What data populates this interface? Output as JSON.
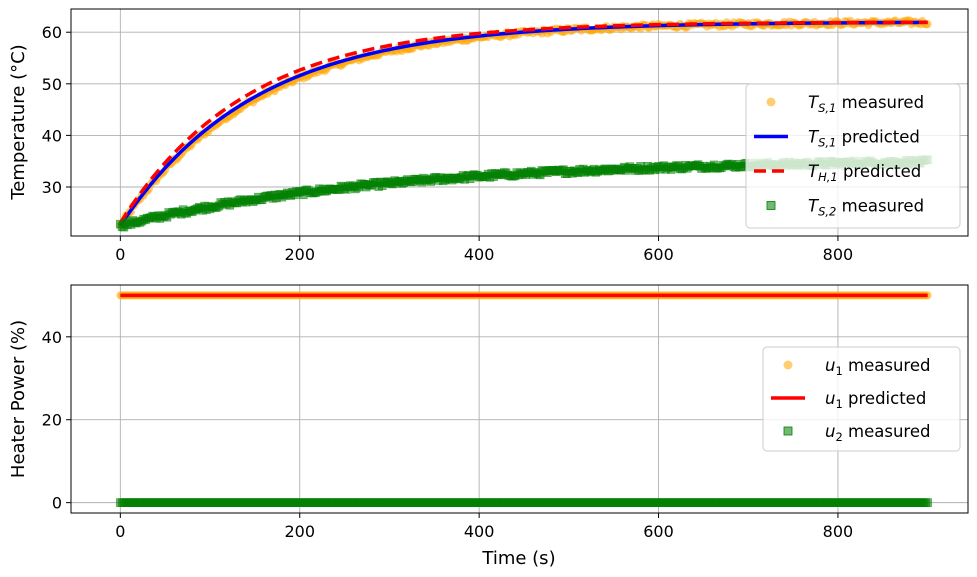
{
  "chart_data": [
    {
      "type": "line",
      "xlabel": "",
      "ylabel": "Temperature (°C)",
      "xlim": [
        -55,
        945
      ],
      "ylim": [
        20.5,
        64.5
      ],
      "xticks": [
        0,
        200,
        400,
        600,
        800
      ],
      "yticks": [
        30,
        40,
        50,
        60
      ],
      "grid": true,
      "legend_position": "right",
      "time_end": 900,
      "series": [
        {
          "id": "ts1_meas",
          "name": "T_{S,1} measured",
          "legend_main": "T",
          "legend_sub": "S,1",
          "legend_suffix": " measured",
          "kind": "scatter",
          "marker": "circle",
          "color": "#ffa500",
          "model": {
            "start": 22.5,
            "end": 62.0,
            "tau": 155
          }
        },
        {
          "id": "ts1_pred",
          "name": "T_{S,1} predicted",
          "legend_main": "T",
          "legend_sub": "S,1",
          "legend_suffix": " predicted",
          "kind": "line",
          "color": "#0000ff",
          "model": {
            "start": 22.5,
            "end": 62.0,
            "tau": 150
          }
        },
        {
          "id": "th1_pred",
          "name": "T_{H,1} predicted",
          "legend_main": "T",
          "legend_sub": "H,1",
          "legend_suffix": " predicted",
          "kind": "dashed",
          "color": "#ff0000",
          "model": {
            "start": 23.0,
            "end": 62.0,
            "tau": 140
          }
        },
        {
          "id": "ts2_meas",
          "name": "T_{S,2} measured",
          "legend_main": "T",
          "legend_sub": "S,2",
          "legend_suffix": " measured",
          "kind": "scatter",
          "marker": "square",
          "color": "#008000",
          "model": {
            "start": 22.5,
            "end": 35.5,
            "tau": 300
          }
        }
      ]
    },
    {
      "type": "line",
      "xlabel": "Time (s)",
      "ylabel": "Heater Power (%)",
      "xlim": [
        -55,
        945
      ],
      "ylim": [
        -2.5,
        52.5
      ],
      "xticks": [
        0,
        200,
        400,
        600,
        800
      ],
      "yticks": [
        0,
        20,
        40
      ],
      "grid": true,
      "legend_position": "right",
      "time_end": 900,
      "series": [
        {
          "id": "u1_meas",
          "name": "u_1 measured",
          "legend_main": "u",
          "legend_sub": "1",
          "legend_suffix": " measured",
          "kind": "scatter",
          "marker": "circle",
          "color": "#ffa500",
          "constant": 50
        },
        {
          "id": "u1_pred",
          "name": "u_1 predicted",
          "legend_main": "u",
          "legend_sub": "1",
          "legend_suffix": " predicted",
          "kind": "line",
          "color": "#ff0000",
          "constant": 50
        },
        {
          "id": "u2_meas",
          "name": "u_2 measured",
          "legend_main": "u",
          "legend_sub": "2",
          "legend_suffix": " measured",
          "kind": "scatter",
          "marker": "square",
          "color": "#008000",
          "constant": 0
        }
      ]
    }
  ]
}
